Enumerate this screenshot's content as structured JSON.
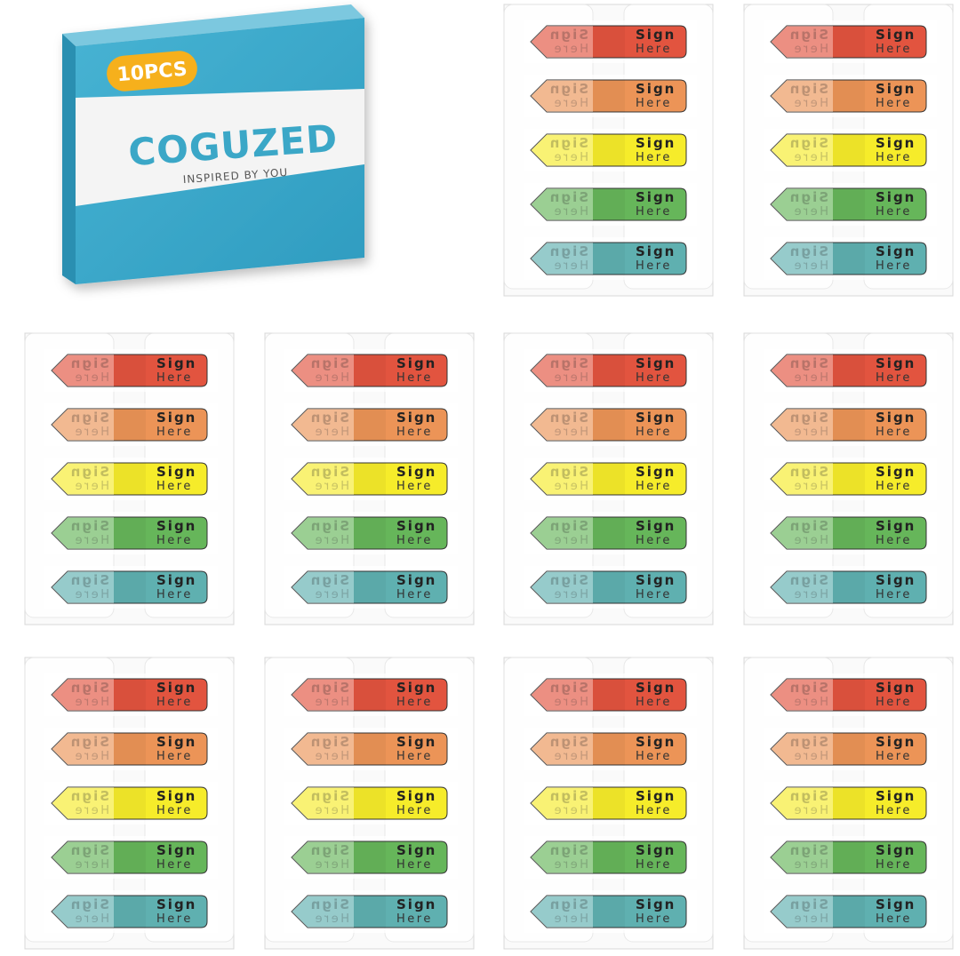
{
  "box": {
    "badge": "10PCS",
    "brand": "COGUZED",
    "tagline": "INSPIRED BY YOU"
  },
  "tab": {
    "line1": "Sign",
    "line2": "Here"
  }
}
